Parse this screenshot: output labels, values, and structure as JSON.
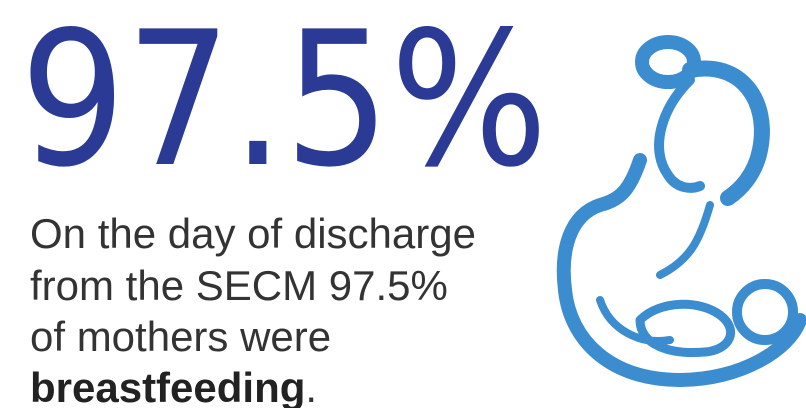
{
  "headline": {
    "stat": "97.5%"
  },
  "body": {
    "lines": [
      "On the day of discharge",
      "from the SECM 97.5%",
      "of mothers were"
    ],
    "emphasis": "breastfeeding",
    "end": "."
  }
}
